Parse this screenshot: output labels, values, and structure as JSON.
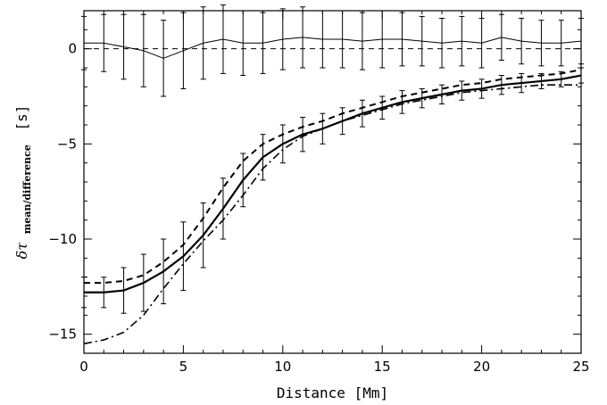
{
  "chart_data": {
    "type": "line",
    "title": "",
    "xlabel": "Distance [Mm]",
    "ylabel": {
      "symbol": "δτ",
      "subscript": "mean/difference",
      "unit": "[s]"
    },
    "xlim": [
      0,
      25
    ],
    "ylim": [
      -16,
      2
    ],
    "x_ticks": [
      0,
      5,
      10,
      15,
      20,
      25
    ],
    "y_ticks": [
      0,
      -5,
      -10,
      -15
    ],
    "x_tick_labels": [
      "0",
      "5",
      "10",
      "15",
      "20",
      "25"
    ],
    "y_tick_labels": [
      "0",
      "−5",
      "−10",
      "−15"
    ],
    "grid": false,
    "legend": "none",
    "x": [
      0,
      1,
      2,
      3,
      4,
      5,
      6,
      7,
      8,
      9,
      10,
      11,
      12,
      13,
      14,
      15,
      16,
      17,
      18,
      19,
      20,
      21,
      22,
      23,
      24,
      25
    ],
    "series": [
      {
        "style": "solid-thick",
        "values": [
          -12.8,
          -12.8,
          -12.7,
          -12.3,
          -11.7,
          -10.9,
          -9.8,
          -8.4,
          -6.9,
          -5.7,
          -5.0,
          -4.5,
          -4.2,
          -3.8,
          -3.4,
          -3.1,
          -2.8,
          -2.6,
          -2.4,
          -2.2,
          -2.1,
          -1.9,
          -1.8,
          -1.7,
          -1.6,
          -1.4
        ],
        "error": [
          0.8,
          0.8,
          1.2,
          1.5,
          1.7,
          1.8,
          1.7,
          1.6,
          1.4,
          1.2,
          1.0,
          0.9,
          0.8,
          0.7,
          0.7,
          0.6,
          0.6,
          0.5,
          0.5,
          0.5,
          0.5,
          0.5,
          0.5,
          0.4,
          0.4,
          0.4
        ]
      },
      {
        "style": "dashed-thick",
        "values": [
          -12.3,
          -12.3,
          -12.2,
          -11.9,
          -11.2,
          -10.3,
          -8.9,
          -7.3,
          -5.9,
          -5.0,
          -4.5,
          -4.1,
          -3.8,
          -3.4,
          -3.1,
          -2.8,
          -2.5,
          -2.3,
          -2.1,
          -1.9,
          -1.8,
          -1.6,
          -1.5,
          -1.4,
          -1.3,
          -1.1
        ]
      },
      {
        "style": "dash-dot-thick",
        "values": [
          -15.5,
          -15.3,
          -14.9,
          -14.0,
          -12.6,
          -11.3,
          -10.1,
          -9.0,
          -7.7,
          -6.3,
          -5.3,
          -4.6,
          -4.2,
          -3.8,
          -3.5,
          -3.2,
          -2.9,
          -2.7,
          -2.5,
          -2.3,
          -2.2,
          -2.1,
          -2.0,
          -1.9,
          -1.9,
          -1.9
        ]
      },
      {
        "style": "solid-thin",
        "values": [
          0.3,
          0.3,
          0.1,
          -0.1,
          -0.5,
          -0.1,
          0.3,
          0.5,
          0.3,
          0.3,
          0.5,
          0.6,
          0.5,
          0.5,
          0.4,
          0.5,
          0.5,
          0.4,
          0.3,
          0.4,
          0.3,
          0.6,
          0.4,
          0.3,
          0.3,
          0.4
        ],
        "error": [
          1.4,
          1.5,
          1.7,
          1.9,
          2.0,
          2.0,
          1.9,
          1.8,
          1.7,
          1.6,
          1.6,
          1.6,
          1.5,
          1.5,
          1.5,
          1.5,
          1.4,
          1.3,
          1.3,
          1.3,
          1.3,
          1.2,
          1.2,
          1.2,
          1.2,
          1.2
        ]
      },
      {
        "style": "dashed-thin-zero",
        "values": [
          0,
          0,
          0,
          0,
          0,
          0,
          0,
          0,
          0,
          0,
          0,
          0,
          0,
          0,
          0,
          0,
          0,
          0,
          0,
          0,
          0,
          0,
          0,
          0,
          0,
          0
        ]
      }
    ]
  }
}
